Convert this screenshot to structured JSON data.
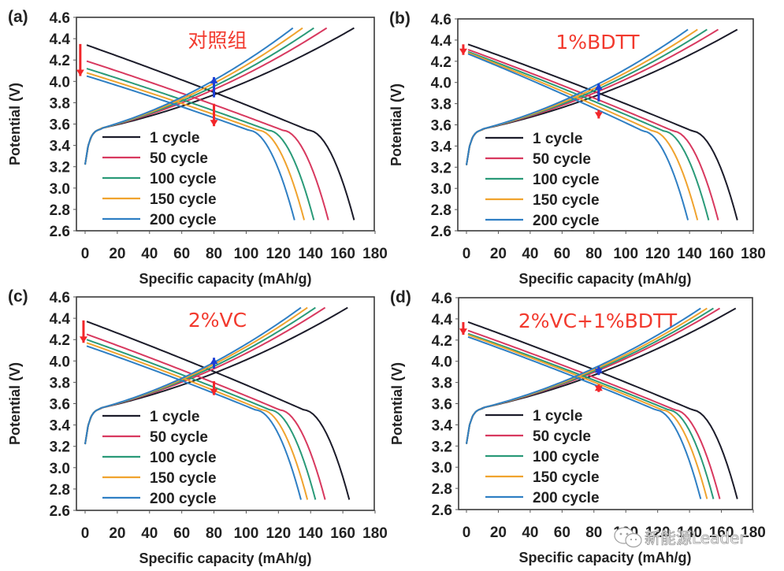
{
  "chart_data": [
    {
      "type": "line",
      "panel_label": "(a)",
      "annotation": "对照组",
      "xlabel": "Specific capacity (mAh/g)",
      "ylabel": "Potential (V)",
      "xlim": [
        -5,
        180
      ],
      "ylim": [
        2.6,
        4.6
      ],
      "xticks": [
        "0",
        "20",
        "40",
        "60",
        "80",
        "100",
        "120",
        "140",
        "160",
        "180"
      ],
      "yticks": [
        "2.6",
        "2.8",
        "3.0",
        "3.2",
        "3.4",
        "3.6",
        "3.8",
        "4.0",
        "4.2",
        "4.4",
        "4.6"
      ],
      "legend_position": "lower-left",
      "series": [
        {
          "name": "1 cycle",
          "color": "#1c1c2a",
          "charge_capacity": 167,
          "discharge_capacity": 166,
          "discharge_start_v": 4.34
        },
        {
          "name": "50 cycle",
          "color": "#d8395f",
          "charge_capacity": 150,
          "discharge_capacity": 150,
          "discharge_start_v": 4.19
        },
        {
          "name": "100 cycle",
          "color": "#2a9a78",
          "charge_capacity": 142,
          "discharge_capacity": 141,
          "discharge_start_v": 4.12
        },
        {
          "name": "150 cycle",
          "color": "#f0a32e",
          "charge_capacity": 135,
          "discharge_capacity": 135,
          "discharge_start_v": 4.08
        },
        {
          "name": "200 cycle",
          "color": "#2f7fc4",
          "charge_capacity": 129,
          "discharge_capacity": 129,
          "discharge_start_v": 4.05
        }
      ],
      "arrows": [
        {
          "color": "#f2262a",
          "direction": "down",
          "x": -3,
          "y_from": 4.35,
          "y_to": 4.05
        },
        {
          "color": "#1d3fd6",
          "direction": "up",
          "x": 80,
          "y_from": 3.85,
          "y_to": 4.04
        },
        {
          "color": "#f2262a",
          "direction": "down",
          "x": 80,
          "y_from": 3.79,
          "y_to": 3.58
        }
      ]
    },
    {
      "type": "line",
      "panel_label": "(b)",
      "annotation": "1%BDTT",
      "xlabel": "Specific capacity (mAh/g)",
      "ylabel": "Potential (V)",
      "xlim": [
        -5,
        180
      ],
      "ylim": [
        2.6,
        4.6
      ],
      "xticks": [
        "0",
        "20",
        "40",
        "60",
        "80",
        "100",
        "120",
        "140",
        "160",
        "180"
      ],
      "yticks": [
        "2.6",
        "2.8",
        "3.0",
        "3.2",
        "3.4",
        "3.6",
        "3.8",
        "4.0",
        "4.2",
        "4.4",
        "4.6"
      ],
      "legend_position": "lower-left",
      "series": [
        {
          "name": "1 cycle",
          "color": "#1c1c2a",
          "charge_capacity": 170,
          "discharge_capacity": 169,
          "discharge_start_v": 4.36
        },
        {
          "name": "50 cycle",
          "color": "#d8395f",
          "charge_capacity": 158,
          "discharge_capacity": 157,
          "discharge_start_v": 4.31
        },
        {
          "name": "100 cycle",
          "color": "#2a9a78",
          "charge_capacity": 151,
          "discharge_capacity": 151,
          "discharge_start_v": 4.29
        },
        {
          "name": "150 cycle",
          "color": "#f0a32e",
          "charge_capacity": 145,
          "discharge_capacity": 144,
          "discharge_start_v": 4.28
        },
        {
          "name": "200 cycle",
          "color": "#2f7fc4",
          "charge_capacity": 139,
          "discharge_capacity": 138,
          "discharge_start_v": 4.27
        }
      ],
      "arrows": [
        {
          "color": "#f2262a",
          "direction": "down",
          "x": -2,
          "y_from": 4.36,
          "y_to": 4.26
        },
        {
          "color": "#1d3fd6",
          "direction": "up",
          "x": 83,
          "y_from": 3.82,
          "y_to": 3.99
        },
        {
          "color": "#f2262a",
          "direction": "down",
          "x": 83,
          "y_from": 3.74,
          "y_to": 3.66
        }
      ]
    },
    {
      "type": "line",
      "panel_label": "(c)",
      "annotation": "2%VC",
      "xlabel": "Specific capacity (mAh/g)",
      "ylabel": "Potential (V)",
      "xlim": [
        -5,
        180
      ],
      "ylim": [
        2.6,
        4.6
      ],
      "xticks": [
        "0",
        "20",
        "40",
        "60",
        "80",
        "100",
        "120",
        "140",
        "160",
        "180"
      ],
      "yticks": [
        "2.6",
        "2.8",
        "3.0",
        "3.2",
        "3.4",
        "3.6",
        "3.8",
        "4.0",
        "4.2",
        "4.4",
        "4.6"
      ],
      "legend_position": "lower-left",
      "series": [
        {
          "name": "1 cycle",
          "color": "#1c1c2a",
          "charge_capacity": 163,
          "discharge_capacity": 163,
          "discharge_start_v": 4.37
        },
        {
          "name": "50 cycle",
          "color": "#d8395f",
          "charge_capacity": 149,
          "discharge_capacity": 148,
          "discharge_start_v": 4.25
        },
        {
          "name": "100 cycle",
          "color": "#2a9a78",
          "charge_capacity": 143,
          "discharge_capacity": 142,
          "discharge_start_v": 4.2
        },
        {
          "name": "150 cycle",
          "color": "#f0a32e",
          "charge_capacity": 138,
          "discharge_capacity": 137,
          "discharge_start_v": 4.17
        },
        {
          "name": "200 cycle",
          "color": "#2f7fc4",
          "charge_capacity": 134,
          "discharge_capacity": 133,
          "discharge_start_v": 4.14
        }
      ],
      "arrows": [
        {
          "color": "#f2262a",
          "direction": "down",
          "x": -1,
          "y_from": 4.38,
          "y_to": 4.17
        },
        {
          "color": "#1d3fd6",
          "direction": "up",
          "x": 80,
          "y_from": 3.93,
          "y_to": 4.03
        },
        {
          "color": "#f2262a",
          "direction": "down",
          "x": 80,
          "y_from": 3.81,
          "y_to": 3.68
        }
      ]
    },
    {
      "type": "line",
      "panel_label": "(d)",
      "annotation": "2%VC+1%BDTT",
      "xlabel": "Specific capacity (mAh/g)",
      "ylabel": "Potential (V)",
      "xlim": [
        -5,
        180
      ],
      "ylim": [
        2.6,
        4.6
      ],
      "xticks": [
        "0",
        "20",
        "40",
        "60",
        "80",
        "100",
        "120",
        "140",
        "160",
        "180"
      ],
      "yticks": [
        "2.6",
        "2.8",
        "3.0",
        "3.2",
        "3.4",
        "3.6",
        "3.8",
        "4.0",
        "4.2",
        "4.4",
        "4.6"
      ],
      "legend_position": "lower-left",
      "series": [
        {
          "name": "1 cycle",
          "color": "#1c1c2a",
          "charge_capacity": 169,
          "discharge_capacity": 169,
          "discharge_start_v": 4.37
        },
        {
          "name": "50 cycle",
          "color": "#d8395f",
          "charge_capacity": 159,
          "discharge_capacity": 158,
          "discharge_start_v": 4.29
        },
        {
          "name": "100 cycle",
          "color": "#2a9a78",
          "charge_capacity": 155,
          "discharge_capacity": 154,
          "discharge_start_v": 4.26
        },
        {
          "name": "150 cycle",
          "color": "#f0a32e",
          "charge_capacity": 151,
          "discharge_capacity": 150,
          "discharge_start_v": 4.25
        },
        {
          "name": "200 cycle",
          "color": "#2f7fc4",
          "charge_capacity": 147,
          "discharge_capacity": 146,
          "discharge_start_v": 4.23
        }
      ],
      "arrows": [
        {
          "color": "#f2262a",
          "direction": "down",
          "x": -2,
          "y_from": 4.37,
          "y_to": 4.25
        },
        {
          "color": "#1d3fd6",
          "direction": "both",
          "x": 83,
          "y_from": 3.87,
          "y_to": 3.95
        },
        {
          "color": "#f2262a",
          "direction": "both",
          "x": 83,
          "y_from": 3.71,
          "y_to": 3.78
        }
      ]
    }
  ],
  "watermark": {
    "icon": "wechat-icon",
    "text": "新能源Leader"
  }
}
